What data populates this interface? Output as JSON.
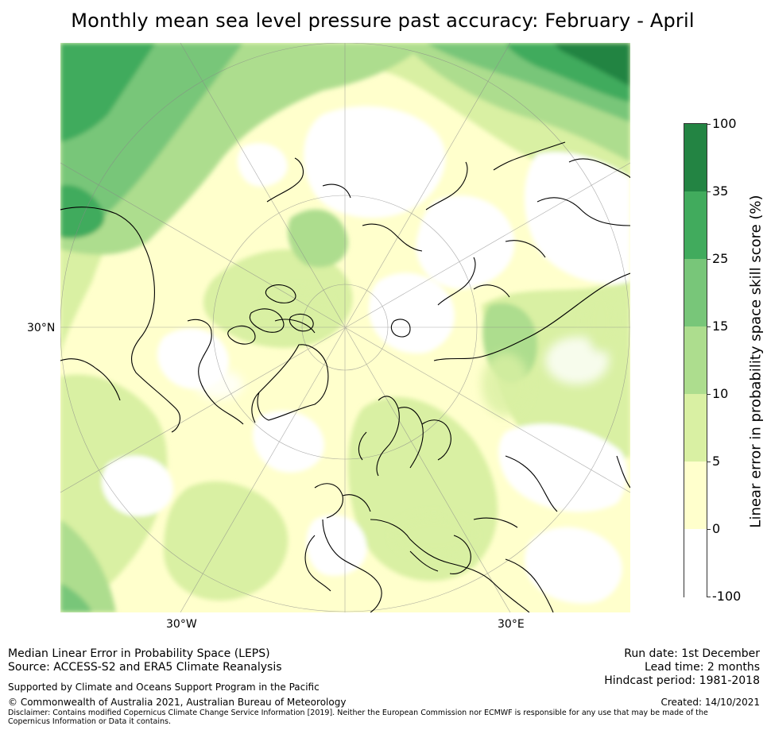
{
  "title": "Monthly mean sea level pressure past accuracy: February - April",
  "map": {
    "projection": "north polar stereographic",
    "lat_label": "30°N",
    "lon_labels": [
      "30°W",
      "30°E"
    ]
  },
  "colorbar": {
    "title": "Linear error in probability space skill score (%)",
    "tick_labels": [
      "100",
      "35",
      "25",
      "15",
      "10",
      "5",
      "0",
      "-100"
    ],
    "bins": [
      {
        "from": "35",
        "to": "100",
        "color": "#238443"
      },
      {
        "from": "25",
        "to": "35",
        "color": "#41ab5d"
      },
      {
        "from": "15",
        "to": "25",
        "color": "#78c679"
      },
      {
        "from": "10",
        "to": "15",
        "color": "#addd8e"
      },
      {
        "from": "5",
        "to": "10",
        "color": "#d9f0a3"
      },
      {
        "from": "0",
        "to": "5",
        "color": "#ffffcc"
      },
      {
        "from": "-100",
        "to": "0",
        "color": "#ffffff"
      }
    ]
  },
  "footer": {
    "line1": "Median Linear Error in Probability Space (LEPS)",
    "line2": "Source: ACCESS-S2 and ERA5 Climate Reanalysis",
    "support": "Supported by Climate and Oceans Support Program in the Pacific",
    "copyright": "© Commonwealth of Australia 2021, Australian Bureau of Meteorology",
    "disclaimer": "Disclaimer: Contains modified Copernicus Climate Change Service Information [2019]. Neither the European Commission nor ECMWF is responsible for any use that may be made of the Copernicus Information or Data it contains.",
    "run_date": "Run date: 1st December",
    "lead_time": "Lead time: 2 months",
    "hindcast": "Hindcast period: 1981-2018",
    "created": "Created: 14/10/2021"
  }
}
